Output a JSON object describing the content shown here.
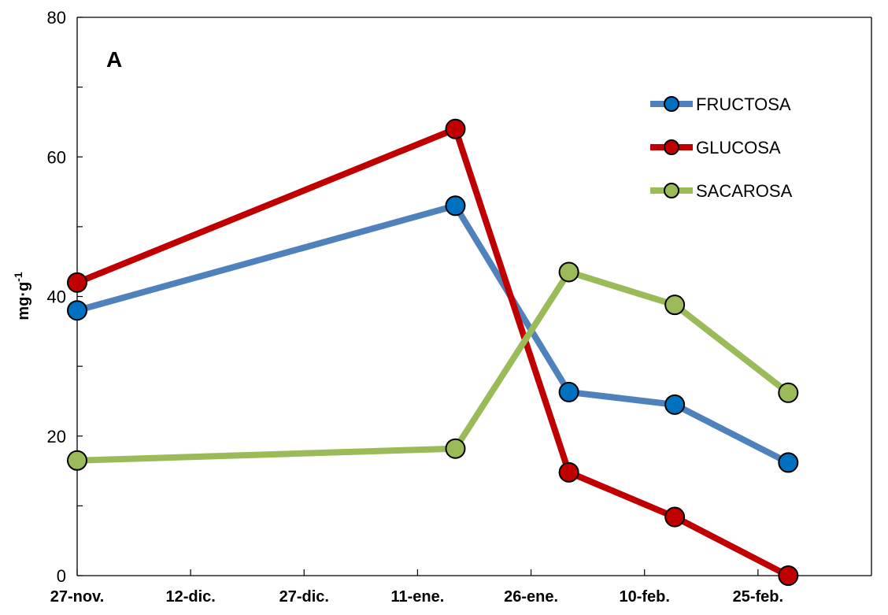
{
  "chart_data": {
    "type": "line",
    "panel_label": "A",
    "ylabel_base": "mg·g",
    "ylabel_sup": "-1",
    "xlabel": "",
    "ylim": [
      0,
      80
    ],
    "y_ticks": [
      0,
      20,
      40,
      60,
      80
    ],
    "x_ticks": [
      "27-nov.",
      "12-dic.",
      "27-dic.",
      "11-ene.",
      "26-ene.",
      "10-feb.",
      "25-feb."
    ],
    "x": [
      "27-nov.",
      "16-ene.",
      "31-ene.",
      "14-feb.",
      "1-mar."
    ],
    "grid": false,
    "legend_position": "top-right",
    "series": [
      {
        "name": "FRUCTOSA",
        "color": "#4F81BD",
        "marker_color": "#0070C0",
        "values": [
          38,
          53,
          26.3,
          24.5,
          16.2
        ]
      },
      {
        "name": "GLUCOSA",
        "color": "#C00000",
        "marker_color": "#C00000",
        "values": [
          42,
          64,
          14.8,
          8.4,
          0
        ]
      },
      {
        "name": "SACAROSA",
        "color": "#9BBB59",
        "marker_color": "#9BBB59",
        "values": [
          16.5,
          18.2,
          43.5,
          38.8,
          26.2
        ]
      }
    ]
  }
}
